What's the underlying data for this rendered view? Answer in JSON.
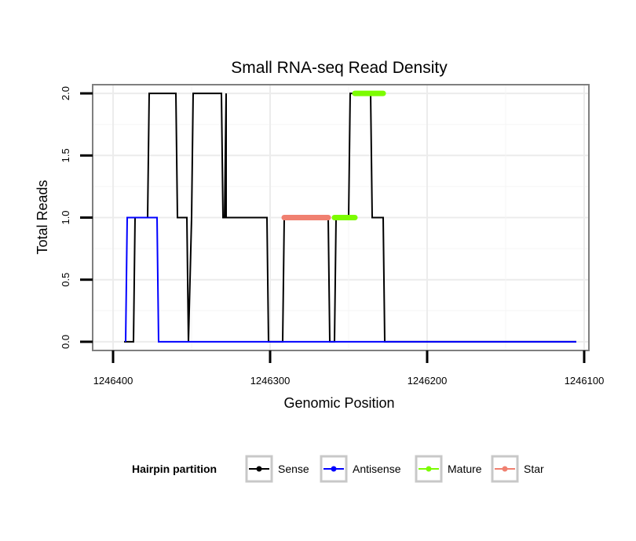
{
  "chart_data": {
    "type": "line",
    "title": "Small RNA-seq Read Density",
    "xlabel": "Genomic Position",
    "ylabel": "Total Reads",
    "x_reversed": true,
    "xlim": [
      1246413,
      1246097
    ],
    "ylim": [
      -0.07,
      2.07
    ],
    "x_ticks": [
      1246400,
      1246300,
      1246200,
      1246100
    ],
    "x_tick_labels": [
      "1246400",
      "1246300",
      "1246200",
      "1246100"
    ],
    "y_ticks": [
      0,
      0.5,
      1,
      1.5,
      2
    ],
    "y_tick_labels": [
      "0.0",
      "0.5",
      "1.0",
      "1.5",
      "2.0"
    ],
    "grid": true,
    "legend": {
      "title": "Hairpin partition",
      "position": "bottom",
      "entries": [
        {
          "name": "Sense",
          "color": "#000000"
        },
        {
          "name": "Antisense",
          "color": "#0000ff"
        },
        {
          "name": "Mature",
          "color": "#7cfc00"
        },
        {
          "name": "Star",
          "color": "#f08070"
        }
      ]
    },
    "series": [
      {
        "name": "Sense",
        "color": "#000000",
        "x": [
          1246393,
          1246387,
          1246386,
          1246378,
          1246377,
          1246360,
          1246359,
          1246353,
          1246352,
          1246350,
          1246349,
          1246331,
          1246330,
          1246329,
          1246328,
          1246328,
          1246327,
          1246302,
          1246301,
          1246292,
          1246291,
          1246263,
          1246262,
          1246259,
          1246258,
          1246250,
          1246249,
          1246236,
          1246235,
          1246228,
          1246227,
          1246196,
          1246105
        ],
        "y": [
          0,
          0,
          1,
          1,
          2,
          2,
          1,
          1,
          0,
          1,
          2,
          2,
          1,
          1,
          2,
          1,
          1,
          1,
          0,
          0,
          1,
          1,
          0,
          0,
          1,
          1,
          2,
          2,
          1,
          1,
          0,
          0,
          0
        ]
      },
      {
        "name": "Antisense",
        "color": "#0000ff",
        "x": [
          1246392,
          1246391,
          1246372,
          1246371,
          1246105
        ],
        "y": [
          0,
          1,
          1,
          0,
          0
        ]
      },
      {
        "name": "Mature",
        "color": "#7cfc00",
        "segments": [
          {
            "x": [
              1246259,
              1246246
            ],
            "y": [
              1,
              1
            ]
          },
          {
            "x": [
              1246246,
              1246228
            ],
            "y": [
              2,
              2
            ]
          }
        ]
      },
      {
        "name": "Star",
        "color": "#f08070",
        "segments": [
          {
            "x": [
              1246291,
              1246263
            ],
            "y": [
              1,
              1
            ]
          }
        ]
      }
    ]
  }
}
